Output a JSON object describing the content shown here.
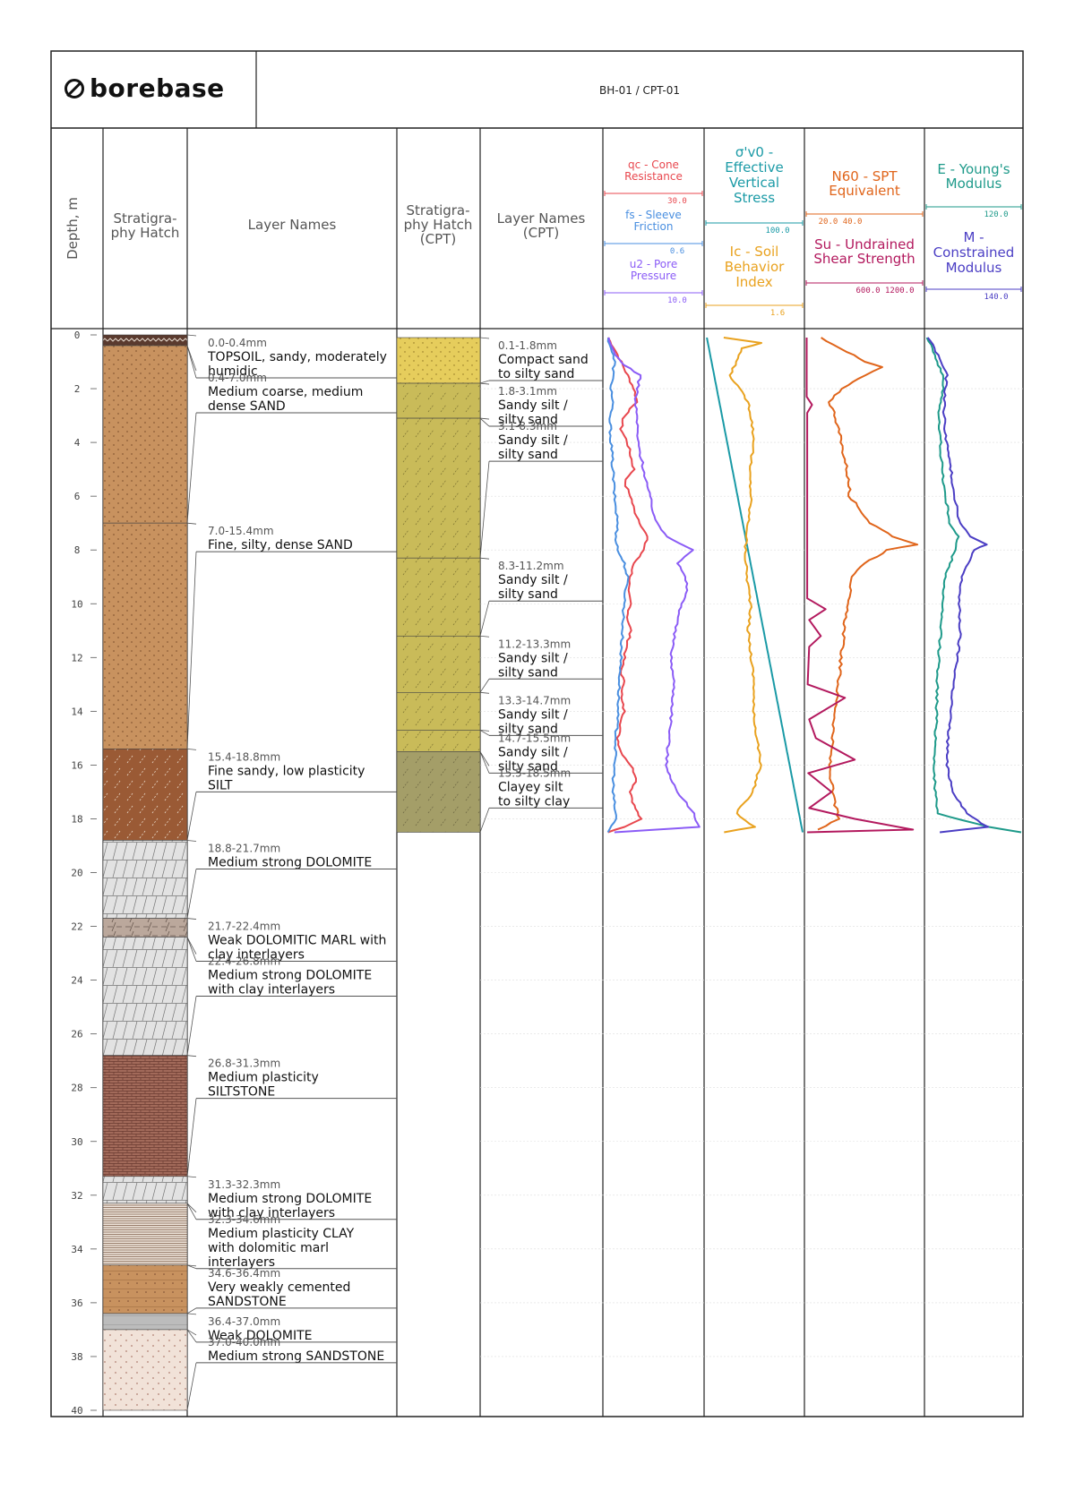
{
  "brand": {
    "name": "borebase",
    "icon": "borebase-logo-icon"
  },
  "title": "BH-01 / CPT-01",
  "headers": {
    "depth": "Depth, m",
    "hatch": [
      "Stratigra-",
      "phy Hatch"
    ],
    "layer_names": "Layer Names",
    "hatch_cpt": [
      "Stratigra-",
      "phy Hatch",
      "(CPT)"
    ],
    "layer_names_cpt": [
      "Layer Names",
      "(CPT)"
    ],
    "tracks": [
      {
        "lines": [
          "qc - Cone",
          "Resistance"
        ],
        "scale": "30.0",
        "color": "#e8474e"
      },
      {
        "lines": [
          "fs - Sleeve",
          "Friction"
        ],
        "scale": "0.6",
        "color": "#4a8fe0"
      },
      {
        "lines": [
          "u2 - Pore",
          "Pressure"
        ],
        "scale": "10.0",
        "color": "#8b5cf6"
      },
      {
        "lines": [
          "σ'v0 -",
          "Effective",
          "Vertical",
          "Stress"
        ],
        "scale": "100.0",
        "color": "#1a9aa6"
      },
      {
        "lines": [
          "Ic - Soil",
          "Behavior",
          "Index"
        ],
        "scale": "1.6",
        "color": "#e9a21f"
      },
      {
        "lines": [
          "N60 - SPT",
          "Equivalent"
        ],
        "scale": "20.0  40.0",
        "color": "#e0651b"
      },
      {
        "lines": [
          "Su - Undrained",
          "Shear Strength"
        ],
        "scale": "600.0    1200.0",
        "color": "#b3195e"
      },
      {
        "lines": [
          "E - Young's",
          "Modulus"
        ],
        "scale": "120.0",
        "color": "#1e9a8a"
      },
      {
        "lines": [
          "M -",
          "Constrained",
          "Modulus"
        ],
        "scale": "140.0",
        "color": "#4b3ec4"
      }
    ]
  },
  "depth_ticks": [
    "0",
    "2",
    "4",
    "6",
    "8",
    "10",
    "12",
    "14",
    "16",
    "18",
    "20",
    "22",
    "24",
    "26",
    "28",
    "30",
    "32",
    "34",
    "36",
    "38",
    "40"
  ],
  "layers": [
    {
      "top": 0.0,
      "bottom": 0.4,
      "range": "0.0-0.4mm",
      "name": [
        "TOPSOIL, sandy, moderately",
        "humidic"
      ],
      "hatch": "topsoil"
    },
    {
      "top": 0.4,
      "bottom": 7.0,
      "range": "0.4-7.0mm",
      "name": [
        "Medium coarse, medium",
        "dense SAND"
      ],
      "hatch": "sand"
    },
    {
      "top": 7.0,
      "bottom": 15.4,
      "range": "7.0-15.4mm",
      "name": [
        "Fine, silty, dense SAND"
      ],
      "hatch": "sand"
    },
    {
      "top": 15.4,
      "bottom": 18.8,
      "range": "15.4-18.8mm",
      "name": [
        "Fine sandy, low plasticity",
        "SILT"
      ],
      "hatch": "silt"
    },
    {
      "top": 18.8,
      "bottom": 21.7,
      "range": "18.8-21.7mm",
      "name": [
        "Medium strong DOLOMITE"
      ],
      "hatch": "dolomite"
    },
    {
      "top": 21.7,
      "bottom": 22.4,
      "range": "21.7-22.4mm",
      "name": [
        "Weak DOLOMITIC MARL with",
        "clay interlayers"
      ],
      "hatch": "marl"
    },
    {
      "top": 22.4,
      "bottom": 26.8,
      "range": "22.4-26.8mm",
      "name": [
        "Medium strong DOLOMITE",
        "with clay interlayers"
      ],
      "hatch": "dolomite"
    },
    {
      "top": 26.8,
      "bottom": 31.3,
      "range": "26.8-31.3mm",
      "name": [
        "Medium plasticity",
        "SILTSTONE"
      ],
      "hatch": "siltstone"
    },
    {
      "top": 31.3,
      "bottom": 32.3,
      "range": "31.3-32.3mm",
      "name": [
        "Medium strong DOLOMITE",
        "with clay interlayers"
      ],
      "hatch": "dolomite"
    },
    {
      "top": 32.3,
      "bottom": 34.6,
      "range": "32.3-34.6mm",
      "name": [
        "Medium plasticity CLAY",
        "with dolomitic marl",
        "interlayers"
      ],
      "hatch": "clay"
    },
    {
      "top": 34.6,
      "bottom": 36.4,
      "range": "34.6-36.4mm",
      "name": [
        "Very weakly cemented",
        "SANDSTONE"
      ],
      "hatch": "sandstone"
    },
    {
      "top": 36.4,
      "bottom": 37.0,
      "range": "36.4-37.0mm",
      "name": [
        "Weak DOLOMITE"
      ],
      "hatch": "weakdolo"
    },
    {
      "top": 37.0,
      "bottom": 40.0,
      "range": "37.0-40.0mm",
      "name": [
        "Medium strong SANDSTONE"
      ],
      "hatch": "sandstone2"
    }
  ],
  "cpt_layers": [
    {
      "top": 0.1,
      "bottom": 1.8,
      "range": "0.1-1.8mm",
      "name": [
        "Compact sand",
        "to silty sand"
      ],
      "hatch": "yellowsand"
    },
    {
      "top": 1.8,
      "bottom": 3.1,
      "range": "1.8-3.1mm",
      "name": [
        "Sandy silt /",
        "silty sand"
      ],
      "hatch": "siltsand"
    },
    {
      "top": 3.1,
      "bottom": 8.3,
      "range": "3.1-8.3mm",
      "name": [
        "Sandy silt /",
        "silty sand"
      ],
      "hatch": "siltsand"
    },
    {
      "top": 8.3,
      "bottom": 11.2,
      "range": "8.3-11.2mm",
      "name": [
        "Sandy silt /",
        "silty sand"
      ],
      "hatch": "siltsand"
    },
    {
      "top": 11.2,
      "bottom": 13.3,
      "range": "11.2-13.3mm",
      "name": [
        "Sandy silt /",
        "silty sand"
      ],
      "hatch": "siltsand"
    },
    {
      "top": 13.3,
      "bottom": 14.7,
      "range": "13.3-14.7mm",
      "name": [
        "Sandy silt /",
        "silty sand"
      ],
      "hatch": "siltsand"
    },
    {
      "top": 14.7,
      "bottom": 15.5,
      "range": "14.7-15.5mm",
      "name": [
        "Sandy silt /",
        "silty sand"
      ],
      "hatch": "siltsand"
    },
    {
      "top": 15.5,
      "bottom": 18.5,
      "range": "15.5-18.5mm",
      "name": [
        "Clayey silt",
        "to silty clay"
      ],
      "hatch": "clayeysilt"
    }
  ],
  "chart_data": {
    "type": "line",
    "depth_range": [
      0,
      40
    ],
    "depth_label": "Depth, m",
    "series": [
      {
        "name": "qc - Cone Resistance",
        "color": "#e8474e",
        "track": 0,
        "xmax": 30,
        "points": [
          [
            0.1,
            1
          ],
          [
            0.5,
            3
          ],
          [
            1,
            5
          ],
          [
            1.5,
            7
          ],
          [
            2,
            9
          ],
          [
            2.5,
            10
          ],
          [
            3,
            6
          ],
          [
            3.5,
            5
          ],
          [
            4,
            7
          ],
          [
            4.5,
            8
          ],
          [
            5,
            9
          ],
          [
            5.5,
            6
          ],
          [
            6,
            8
          ],
          [
            6.5,
            9
          ],
          [
            7,
            11
          ],
          [
            7.5,
            13
          ],
          [
            8,
            12
          ],
          [
            8.5,
            9
          ],
          [
            9,
            8
          ],
          [
            9.5,
            7
          ],
          [
            10,
            8
          ],
          [
            10.5,
            7
          ],
          [
            11,
            8
          ],
          [
            11.5,
            7
          ],
          [
            12,
            6
          ],
          [
            12.5,
            5
          ],
          [
            13,
            6
          ],
          [
            13.5,
            5
          ],
          [
            14,
            6
          ],
          [
            14.5,
            5
          ],
          [
            15,
            4
          ],
          [
            15.5,
            5
          ],
          [
            16,
            8
          ],
          [
            16.5,
            10
          ],
          [
            17,
            8
          ],
          [
            17.5,
            9
          ],
          [
            18,
            11
          ],
          [
            18.3,
            6
          ],
          [
            18.5,
            1
          ]
        ]
      },
      {
        "name": "fs - Sleeve Friction",
        "color": "#4a8fe0",
        "track": 0,
        "xmax": 0.6,
        "points": [
          [
            0.1,
            0.02
          ],
          [
            0.5,
            0.04
          ],
          [
            1,
            0.06
          ],
          [
            1.5,
            0.05
          ],
          [
            2,
            0.04
          ],
          [
            2.5,
            0.05
          ],
          [
            3,
            0.03
          ],
          [
            4,
            0.04
          ],
          [
            5,
            0.05
          ],
          [
            6,
            0.06
          ],
          [
            7,
            0.08
          ],
          [
            7.5,
            0.07
          ],
          [
            8,
            0.08
          ],
          [
            8.5,
            0.12
          ],
          [
            9,
            0.14
          ],
          [
            9.5,
            0.13
          ],
          [
            10,
            0.12
          ],
          [
            11,
            0.11
          ],
          [
            12,
            0.1
          ],
          [
            13,
            0.09
          ],
          [
            14,
            0.08
          ],
          [
            15,
            0.07
          ],
          [
            16,
            0.06
          ],
          [
            17,
            0.05
          ],
          [
            18,
            0.07
          ],
          [
            18.5,
            0.02
          ]
        ]
      },
      {
        "name": "u2 - Pore Pressure",
        "color": "#8b5cf6",
        "track": 0,
        "xmax": 10,
        "points": [
          [
            0.1,
            0.3
          ],
          [
            0.5,
            0.8
          ],
          [
            1,
            1.6
          ],
          [
            1.5,
            3.6
          ],
          [
            2,
            3.4
          ],
          [
            2.5,
            3.1
          ],
          [
            3,
            3.3
          ],
          [
            4,
            3.4
          ],
          [
            5,
            4
          ],
          [
            6,
            4.6
          ],
          [
            7,
            5.3
          ],
          [
            7.5,
            6.4
          ],
          [
            8,
            9.1
          ],
          [
            8.5,
            7.5
          ],
          [
            9,
            8.2
          ],
          [
            9.5,
            8.5
          ],
          [
            10,
            7.9
          ],
          [
            11,
            7.2
          ],
          [
            12,
            6.8
          ],
          [
            13,
            7.1
          ],
          [
            14,
            6.9
          ],
          [
            15,
            6.6
          ],
          [
            16,
            6.3
          ],
          [
            17,
            7.4
          ],
          [
            17.8,
            9.2
          ],
          [
            18.3,
            9.6
          ],
          [
            18.5,
            1
          ]
        ]
      },
      {
        "name": "σ'v0 - Effective Vertical Stress",
        "color": "#1a9aa6",
        "track": 1,
        "xmax": 100,
        "points": [
          [
            0.1,
            1
          ],
          [
            18.5,
            100
          ]
        ]
      },
      {
        "name": "Ic - Soil Behavior Index",
        "color": "#e9a21f",
        "track": 1,
        "xmax": 1.6,
        "points": [
          [
            0.1,
            0.3
          ],
          [
            0.3,
            0.9
          ],
          [
            0.5,
            0.6
          ],
          [
            1,
            0.5
          ],
          [
            1.5,
            0.4
          ],
          [
            2,
            0.55
          ],
          [
            2.5,
            0.7
          ],
          [
            3,
            0.75
          ],
          [
            4,
            0.8
          ],
          [
            5,
            0.72
          ],
          [
            6,
            0.75
          ],
          [
            7,
            0.7
          ],
          [
            8,
            0.65
          ],
          [
            9,
            0.68
          ],
          [
            10,
            0.74
          ],
          [
            11,
            0.7
          ],
          [
            12,
            0.75
          ],
          [
            13,
            0.8
          ],
          [
            14,
            0.78
          ],
          [
            15,
            0.85
          ],
          [
            16,
            0.9
          ],
          [
            17,
            0.78
          ],
          [
            17.8,
            0.5
          ],
          [
            18.3,
            0.8
          ],
          [
            18.5,
            0.3
          ]
        ]
      },
      {
        "name": "N60 - SPT Equivalent",
        "color": "#e0651b",
        "track": 2,
        "xmax": 40,
        "points": [
          [
            0.1,
            5
          ],
          [
            0.5,
            12
          ],
          [
            1,
            20
          ],
          [
            1.2,
            26
          ],
          [
            1.5,
            20
          ],
          [
            2,
            12
          ],
          [
            2.5,
            8
          ],
          [
            3,
            10
          ],
          [
            4,
            12
          ],
          [
            5,
            14
          ],
          [
            6,
            15
          ],
          [
            7,
            22
          ],
          [
            7.5,
            30
          ],
          [
            7.8,
            38
          ],
          [
            8,
            28
          ],
          [
            8.5,
            20
          ],
          [
            9,
            16
          ],
          [
            10,
            14
          ],
          [
            11,
            13
          ],
          [
            12,
            12
          ],
          [
            13,
            11
          ],
          [
            14,
            10
          ],
          [
            15,
            9
          ],
          [
            16,
            8
          ],
          [
            17,
            9
          ],
          [
            18,
            11
          ],
          [
            18.4,
            4
          ]
        ]
      },
      {
        "name": "Su - Undrained Shear Strength",
        "color": "#b3195e",
        "track": 2,
        "xmax": 1200,
        "points": [
          [
            0.1,
            5
          ],
          [
            2.3,
            5
          ],
          [
            2.6,
            60
          ],
          [
            2.9,
            10
          ],
          [
            9.8,
            10
          ],
          [
            10.2,
            200
          ],
          [
            10.6,
            30
          ],
          [
            11.2,
            150
          ],
          [
            11.6,
            30
          ],
          [
            13,
            15
          ],
          [
            13.5,
            400
          ],
          [
            14.3,
            30
          ],
          [
            15,
            100
          ],
          [
            15.8,
            500
          ],
          [
            16.3,
            20
          ],
          [
            17,
            260
          ],
          [
            17.6,
            30
          ],
          [
            18,
            500
          ],
          [
            18.4,
            1100
          ],
          [
            18.5,
            10
          ]
        ]
      },
      {
        "name": "E - Young's Modulus",
        "color": "#1e9a8a",
        "track": 3,
        "xmax": 120,
        "points": [
          [
            0.1,
            2
          ],
          [
            0.5,
            8
          ],
          [
            1,
            14
          ],
          [
            1.5,
            20
          ],
          [
            2,
            22
          ],
          [
            3,
            15
          ],
          [
            4,
            18
          ],
          [
            5,
            20
          ],
          [
            6,
            24
          ],
          [
            7,
            30
          ],
          [
            7.5,
            40
          ],
          [
            8,
            36
          ],
          [
            9,
            24
          ],
          [
            10,
            20
          ],
          [
            11,
            18
          ],
          [
            12,
            16
          ],
          [
            13,
            14
          ],
          [
            14,
            13
          ],
          [
            15,
            12
          ],
          [
            16,
            10
          ],
          [
            17,
            11
          ],
          [
            17.8,
            14
          ],
          [
            18.3,
            80
          ],
          [
            18.5,
            120
          ]
        ]
      },
      {
        "name": "M - Constrained Modulus",
        "color": "#4b3ec4",
        "track": 3,
        "xmax": 140,
        "points": [
          [
            0.1,
            3
          ],
          [
            0.5,
            12
          ],
          [
            1,
            22
          ],
          [
            1.5,
            30
          ],
          [
            2,
            28
          ],
          [
            3,
            26
          ],
          [
            4,
            30
          ],
          [
            5,
            36
          ],
          [
            6,
            42
          ],
          [
            7,
            50
          ],
          [
            7.5,
            64
          ],
          [
            7.8,
            90
          ],
          [
            8,
            70
          ],
          [
            9,
            52
          ],
          [
            10,
            48
          ],
          [
            11,
            50
          ],
          [
            12,
            46
          ],
          [
            13,
            40
          ],
          [
            14,
            36
          ],
          [
            15,
            32
          ],
          [
            16,
            30
          ],
          [
            17,
            40
          ],
          [
            17.8,
            60
          ],
          [
            18.3,
            90
          ],
          [
            18.5,
            20
          ]
        ]
      }
    ]
  }
}
